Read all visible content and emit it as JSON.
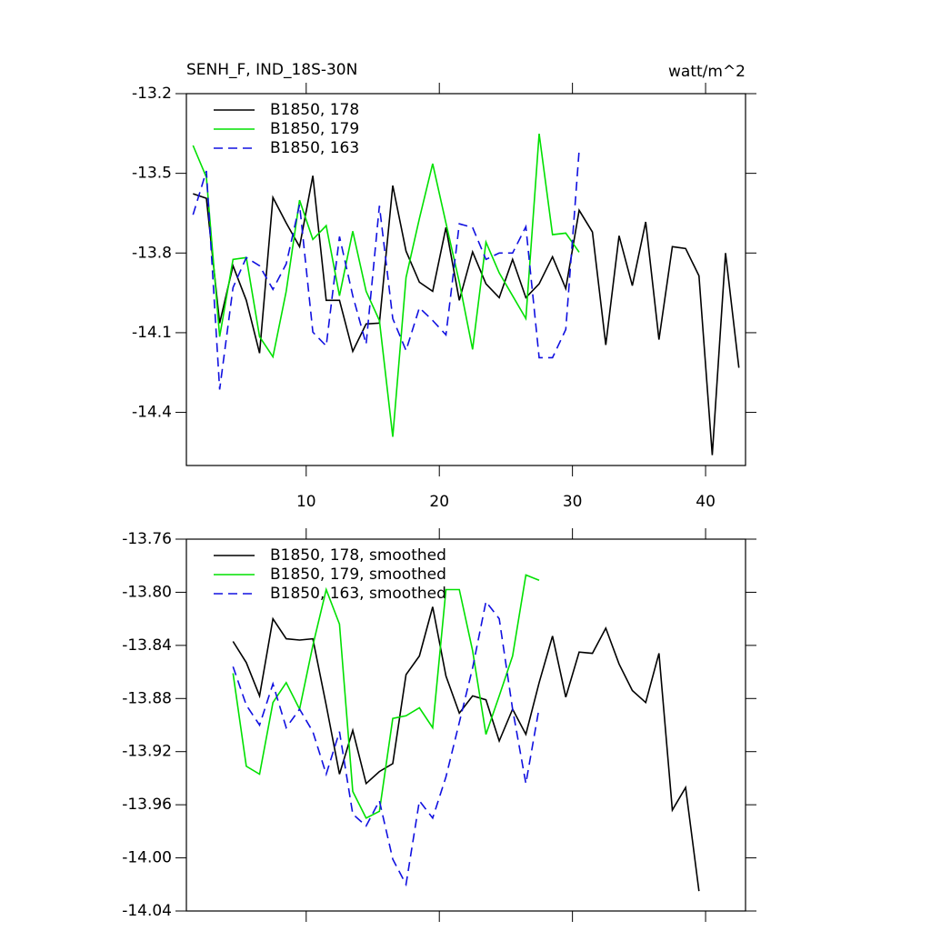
{
  "chart_data": [
    {
      "type": "line",
      "title": "SENH_F, IND_18S-30N",
      "units": "watt/m^2",
      "x": [
        1.5,
        2.5,
        3.5,
        4.5,
        5.5,
        6.5,
        7.5,
        8.5,
        9.5,
        10.5,
        11.5,
        12.5,
        13.5,
        14.5,
        15.5,
        16.5,
        17.5,
        18.5,
        19.5,
        20.5,
        21.5,
        22.5,
        23.5,
        24.5,
        25.5,
        26.5,
        27.5,
        28.5,
        29.5,
        30.5,
        31.5,
        32.5,
        33.5,
        34.5,
        35.5,
        36.5,
        37.5,
        38.5,
        39.5,
        40.5,
        41.5,
        42.5
      ],
      "xlim": [
        1,
        43
      ],
      "xticks": [
        10,
        20,
        30,
        40
      ],
      "ylim": [
        -14.6,
        -13.2
      ],
      "yticks": [
        -13.2,
        -13.5,
        -13.8,
        -14.1,
        -14.4
      ],
      "legend": "top-left",
      "series": [
        {
          "name": "B1850, 178",
          "color": "#000000",
          "dashed": false,
          "values": [
            -13.577,
            -13.594,
            -14.064,
            -13.848,
            -13.978,
            -14.177,
            -13.591,
            -13.687,
            -13.776,
            -13.509,
            -13.978,
            -13.978,
            -14.17,
            -14.067,
            -14.064,
            -13.546,
            -13.793,
            -13.91,
            -13.944,
            -13.704,
            -13.978,
            -13.796,
            -13.916,
            -13.968,
            -13.824,
            -13.968,
            -13.916,
            -13.814,
            -13.934,
            -13.639,
            -13.721,
            -14.146,
            -13.735,
            -13.923,
            -13.683,
            -14.126,
            -13.776,
            -13.783,
            -13.886,
            -14.561,
            -13.8,
            -14.232
          ]
        },
        {
          "name": "B1850, 179",
          "color": "#00e000",
          "dashed": false,
          "values": [
            -13.395,
            -13.515,
            -14.115,
            -13.824,
            -13.817,
            -14.115,
            -14.191,
            -13.944,
            -13.601,
            -13.749,
            -13.697,
            -13.961,
            -13.718,
            -13.944,
            -14.054,
            -14.492,
            -13.892,
            -13.67,
            -13.464,
            -13.687,
            -13.91,
            -14.163,
            -13.759,
            -13.875,
            -13.961,
            -14.047,
            -13.351,
            -13.731,
            -13.725,
            -13.797,
            null,
            null,
            null,
            null,
            null,
            null,
            null,
            null,
            null,
            null,
            null,
            null
          ]
        },
        {
          "name": "B1850, 163",
          "color": "#1010e0",
          "dashed": true,
          "values": [
            -13.656,
            -13.491,
            -14.314,
            -13.93,
            -13.817,
            -13.848,
            -13.937,
            -13.841,
            -13.618,
            -14.098,
            -14.15,
            -13.738,
            -13.961,
            -14.143,
            -13.622,
            -14.047,
            -14.167,
            -14.006,
            -14.054,
            -14.108,
            -13.69,
            -13.704,
            -13.824,
            -13.8,
            -13.8,
            -13.701,
            -14.194,
            -14.194,
            -14.088,
            -13.413,
            null,
            null,
            null,
            null,
            null,
            null,
            null,
            null,
            null,
            null,
            null,
            null
          ]
        }
      ]
    },
    {
      "type": "line",
      "x": [
        4.5,
        5.5,
        6.5,
        7.5,
        8.5,
        9.5,
        10.5,
        11.5,
        12.5,
        13.5,
        14.5,
        15.5,
        16.5,
        17.5,
        18.5,
        19.5,
        20.5,
        21.5,
        22.5,
        23.5,
        24.5,
        25.5,
        26.5,
        27.5,
        28.5,
        29.5,
        30.5,
        31.5,
        32.5,
        33.5,
        34.5,
        35.5,
        36.5,
        37.5,
        38.5,
        39.5
      ],
      "xlim": [
        1,
        43
      ],
      "xticks": [
        10,
        20,
        30,
        40
      ],
      "ylim": [
        -14.04,
        -13.76
      ],
      "yticks": [
        -13.76,
        {
          "value": -13.8,
          "label": "-13.80"
        },
        -13.84,
        -13.88,
        -13.92,
        -13.96,
        {
          "value": -14.0,
          "label": "-14.00"
        },
        -14.04
      ],
      "legend": "top-left",
      "series": [
        {
          "name": "B1850, 178, smoothed",
          "color": "#000000",
          "dashed": false,
          "values": [
            -13.837,
            -13.853,
            -13.878,
            -13.82,
            -13.835,
            -13.836,
            -13.835,
            -13.885,
            -13.937,
            -13.904,
            -13.944,
            -13.935,
            -13.929,
            -13.862,
            -13.848,
            -13.811,
            -13.863,
            -13.891,
            -13.878,
            -13.881,
            -13.912,
            -13.888,
            -13.907,
            -13.868,
            -13.833,
            -13.879,
            -13.845,
            -13.846,
            -13.827,
            -13.854,
            -13.874,
            -13.883,
            -13.846,
            -13.964,
            -13.947,
            -14.025
          ]
        },
        {
          "name": "B1850, 179, smoothed",
          "color": "#00e000",
          "dashed": false,
          "values": [
            -13.861,
            -13.931,
            -13.937,
            -13.883,
            -13.868,
            -13.888,
            -13.84,
            -13.798,
            -13.824,
            -13.95,
            -13.97,
            -13.965,
            -13.895,
            -13.893,
            -13.887,
            -13.902,
            -13.798,
            -13.798,
            -13.844,
            -13.907,
            -13.878,
            -13.848,
            -13.787,
            -13.791,
            null,
            null,
            null,
            null,
            null,
            null,
            null,
            null,
            null,
            null,
            null,
            null
          ]
        },
        {
          "name": "B1850, 163, smoothed",
          "color": "#1010e0",
          "dashed": true,
          "values": [
            -13.856,
            -13.885,
            -13.9,
            -13.869,
            -13.902,
            -13.888,
            -13.905,
            -13.937,
            -13.905,
            -13.967,
            -13.976,
            -13.957,
            -14.001,
            -14.02,
            -13.957,
            -13.97,
            -13.939,
            -13.898,
            -13.857,
            -13.807,
            -13.82,
            -13.888,
            -13.944,
            -13.887,
            null,
            null,
            null,
            null,
            null,
            null,
            null,
            null,
            null,
            null,
            null,
            null
          ]
        }
      ]
    }
  ]
}
